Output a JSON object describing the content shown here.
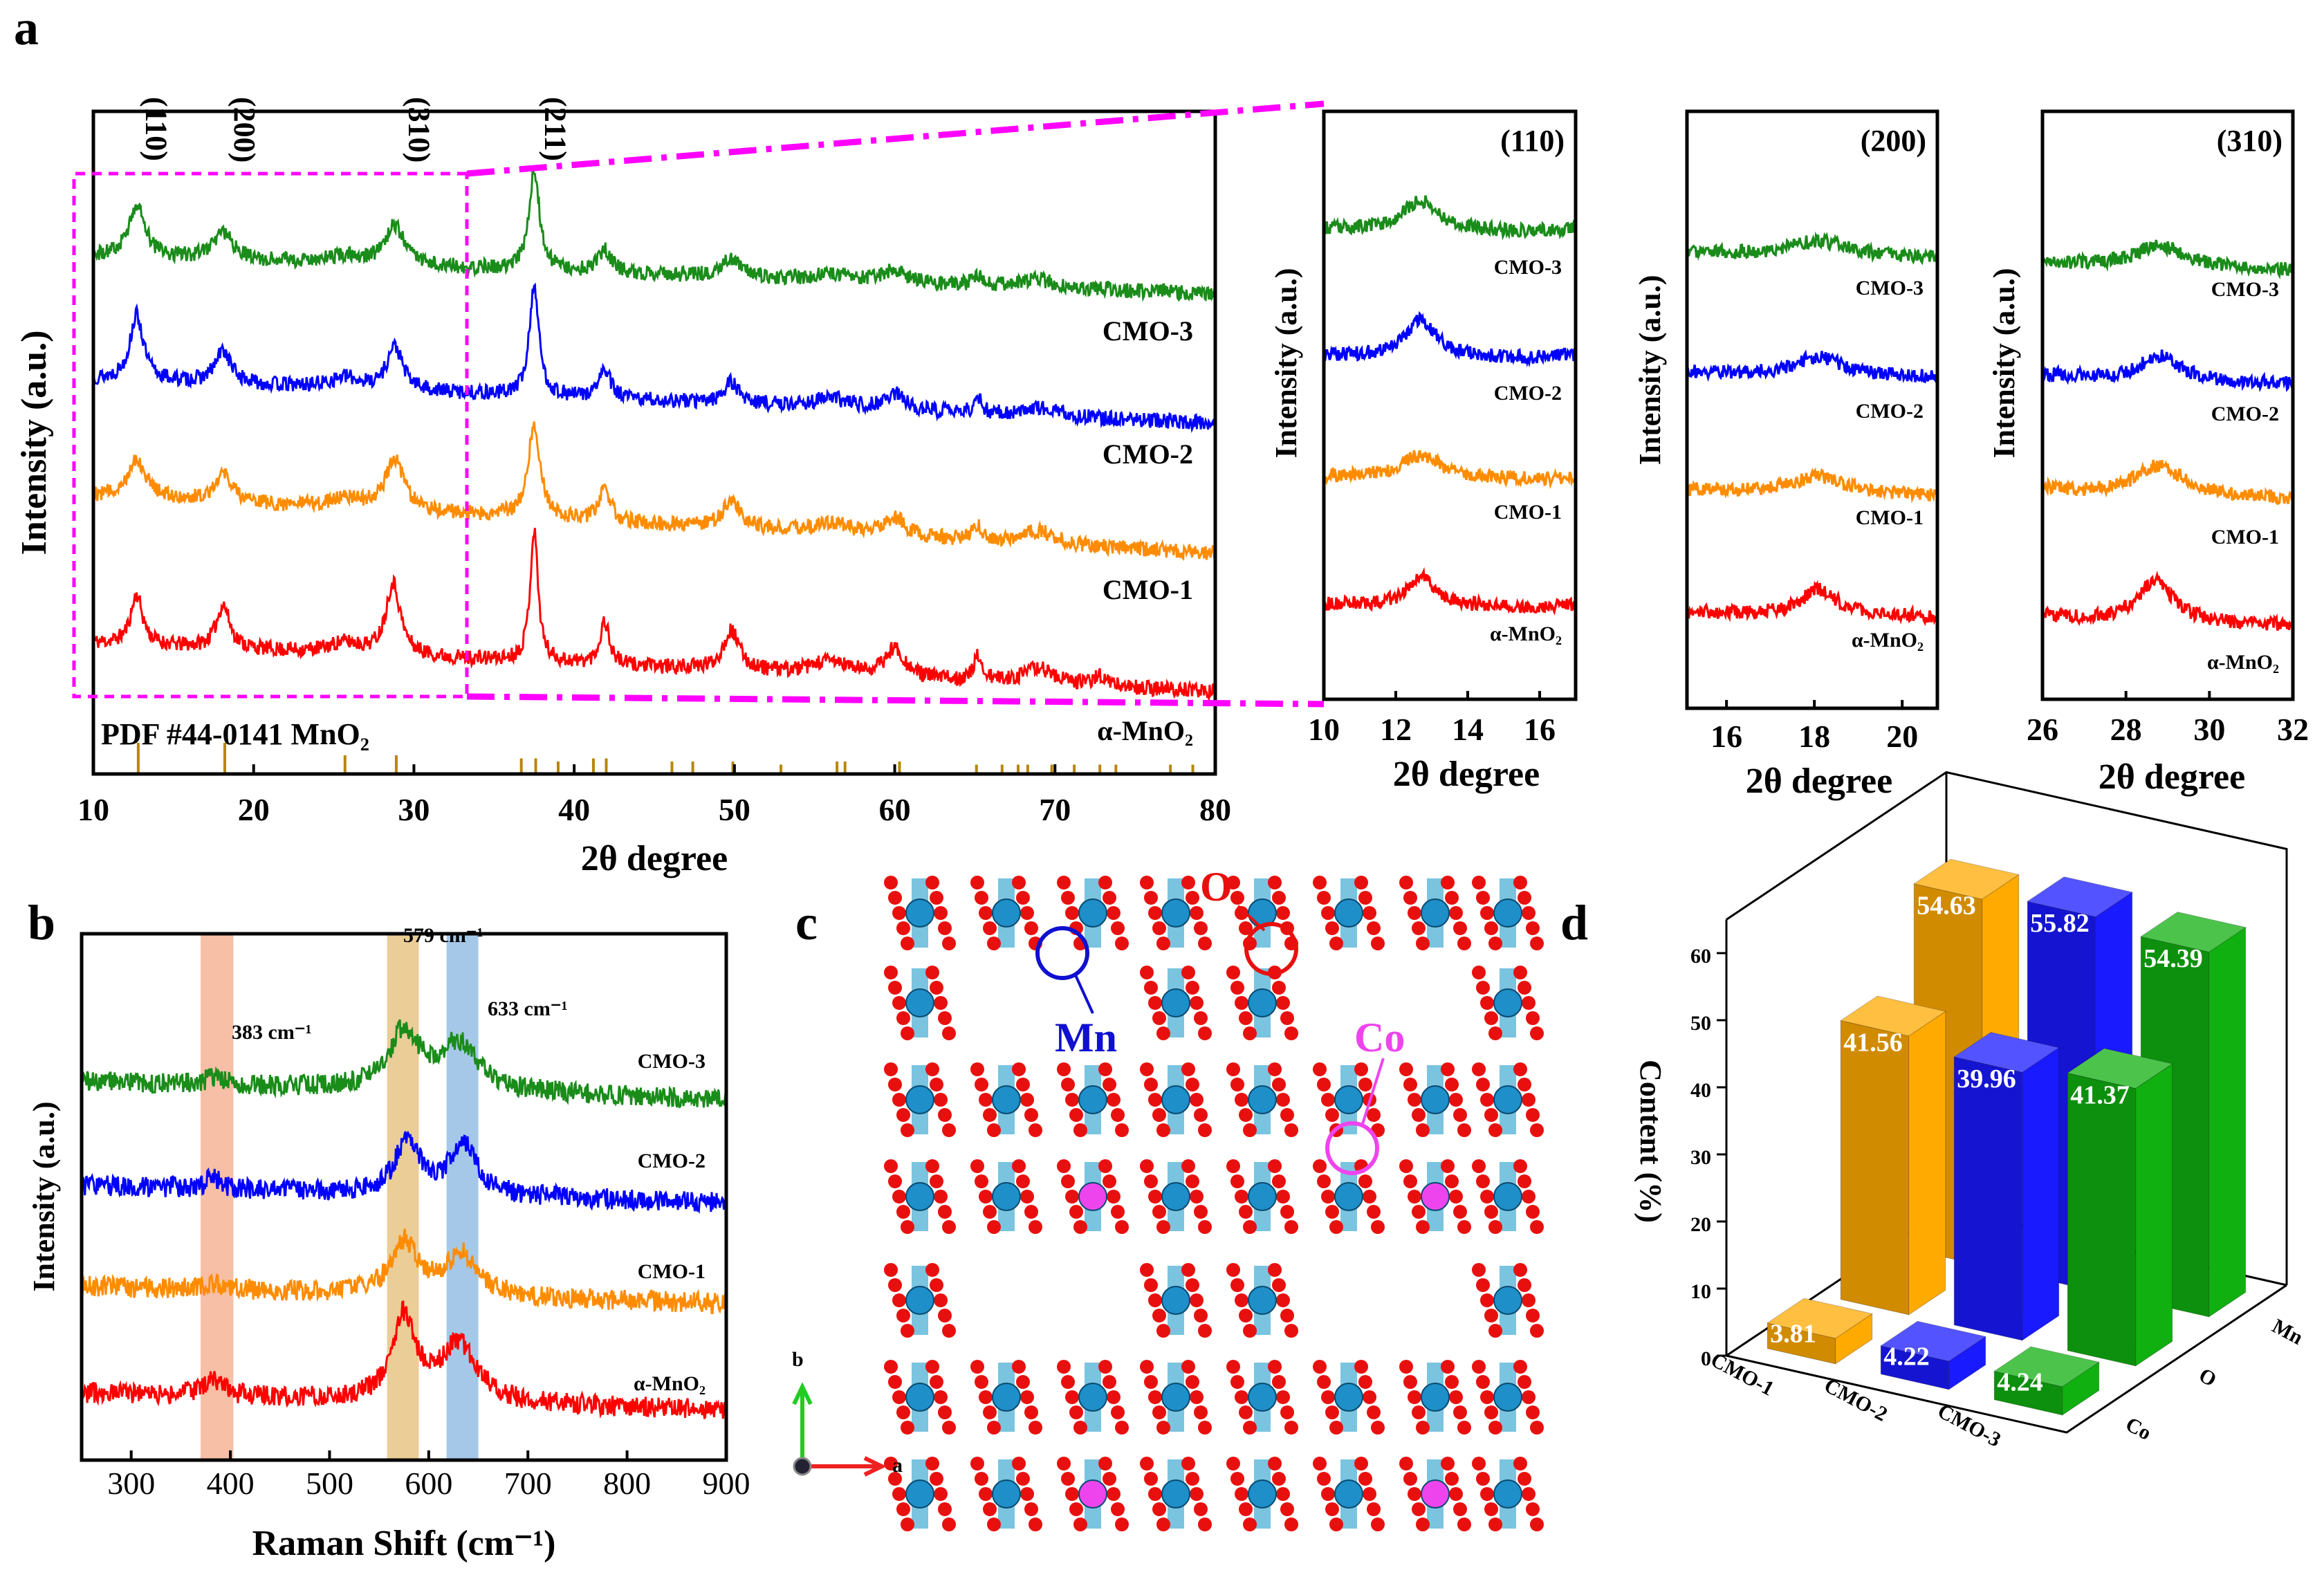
{
  "panel_labels": {
    "a": "a",
    "b": "b",
    "c": "c",
    "d": "d"
  },
  "chart_data": [
    {
      "id": "xrd",
      "type": "line",
      "title": "",
      "xlabel": "2θ degree",
      "ylabel": "Intensity (a.u.)",
      "xlim": [
        10,
        80
      ],
      "xticks": [
        10,
        20,
        30,
        40,
        50,
        60,
        70,
        80
      ],
      "hkl": [
        {
          "label": "(110)",
          "x": 12.7
        },
        {
          "label": "(200)",
          "x": 18.2
        },
        {
          "label": "(310)",
          "x": 29.1
        },
        {
          "label": "(211)",
          "x": 37.6
        }
      ],
      "reference": {
        "label": "PDF #44-0141 MnO₂",
        "color": "#b8860b",
        "positions": [
          12.8,
          18.2,
          25.7,
          28.9,
          36.7,
          37.6,
          39.0,
          41.2,
          42.0,
          46.1,
          47.4,
          49.9,
          52.9,
          56.4,
          56.9,
          60.3,
          65.1,
          66.7,
          67.7,
          68.3,
          69.8,
          71.2,
          72.8,
          73.8,
          77.2,
          78.6
        ],
        "intensities": [
          1,
          1,
          0.6,
          0.6,
          0.5,
          0.5,
          0.4,
          0.5,
          0.5,
          0.4,
          0.4,
          0.4,
          0.3,
          0.4,
          0.4,
          0.4,
          0.3,
          0.3,
          0.3,
          0.3,
          0.3,
          0.3,
          0.3,
          0.3,
          0.3,
          0.3
        ]
      },
      "series": [
        {
          "name": "α-MnO₂",
          "color": "#ff0000",
          "peaks": [
            [
              12.7,
              0.38,
              0.45
            ],
            [
              18.1,
              0.33,
              0.5
            ],
            [
              25.7,
              0.08,
              1.2
            ],
            [
              28.7,
              0.55,
              0.55
            ],
            [
              37.5,
              1.0,
              0.3
            ],
            [
              41.9,
              0.33,
              0.35
            ],
            [
              49.8,
              0.3,
              0.6
            ],
            [
              56,
              0.1,
              1.4
            ],
            [
              60,
              0.22,
              0.7
            ],
            [
              65.2,
              0.18,
              0.3
            ],
            [
              69,
              0.12,
              1.1
            ],
            [
              72.8,
              0.08,
              0.5
            ]
          ]
        },
        {
          "name": "CMO-1",
          "color": "#ff8c00",
          "peaks": [
            [
              12.7,
              0.3,
              0.7
            ],
            [
              18.1,
              0.22,
              0.7
            ],
            [
              25.7,
              0.08,
              1.2
            ],
            [
              28.8,
              0.4,
              0.7
            ],
            [
              37.5,
              0.72,
              0.45
            ],
            [
              41.9,
              0.25,
              0.45
            ],
            [
              49.8,
              0.2,
              0.7
            ],
            [
              56,
              0.08,
              1.4
            ],
            [
              60,
              0.14,
              0.8
            ],
            [
              65.2,
              0.1,
              0.4
            ],
            [
              69,
              0.1,
              1.2
            ]
          ]
        },
        {
          "name": "CMO-2",
          "color": "#0000ff",
          "peaks": [
            [
              12.7,
              0.5,
              0.5
            ],
            [
              18.1,
              0.25,
              0.6
            ],
            [
              25.7,
              0.08,
              1.2
            ],
            [
              28.8,
              0.33,
              0.6
            ],
            [
              37.5,
              0.85,
              0.35
            ],
            [
              41.9,
              0.22,
              0.45
            ],
            [
              49.8,
              0.16,
              0.6
            ],
            [
              56,
              0.07,
              1.4
            ],
            [
              60,
              0.12,
              0.8
            ],
            [
              65.2,
              0.1,
              0.3
            ],
            [
              69,
              0.07,
              1.2
            ]
          ]
        },
        {
          "name": "CMO-3",
          "color": "#1a8c1a",
          "peaks": [
            [
              12.7,
              0.4,
              0.6
            ],
            [
              18.1,
              0.2,
              0.8
            ],
            [
              25.7,
              0.06,
              1.2
            ],
            [
              28.8,
              0.3,
              0.75
            ],
            [
              37.5,
              0.75,
              0.4
            ],
            [
              41.9,
              0.17,
              0.5
            ],
            [
              49.8,
              0.14,
              0.7
            ],
            [
              56,
              0.05,
              1.4
            ],
            [
              60,
              0.1,
              0.8
            ],
            [
              65.2,
              0.06,
              0.4
            ],
            [
              69,
              0.06,
              1.2
            ]
          ]
        }
      ]
    },
    {
      "id": "inset-110",
      "type": "line",
      "title": "(110)",
      "xlabel": "2θ degree",
      "ylabel": "Intensity (a.u.)",
      "xlim": [
        10,
        17
      ],
      "xticks": [
        10,
        12,
        14,
        16
      ],
      "series_ref": "xrd"
    },
    {
      "id": "inset-200",
      "type": "line",
      "title": "(200)",
      "xlabel": "2θ degree",
      "ylabel": "Intensity (a.u.)",
      "xlim": [
        15.1,
        20.8
      ],
      "xticks": [
        16,
        18,
        20
      ],
      "series_ref": "xrd"
    },
    {
      "id": "inset-310",
      "type": "line",
      "title": "(310)",
      "xlabel": "2θ degree",
      "ylabel": "Intensity (a.u.)",
      "xlim": [
        26,
        32
      ],
      "xticks": [
        26,
        28,
        30,
        32
      ],
      "series_ref": "xrd"
    },
    {
      "id": "raman",
      "type": "line",
      "xlabel": "Raman Shift (cm⁻¹)",
      "ylabel": "Intensity (a.u.)",
      "xlim": [
        250,
        900
      ],
      "xticks": [
        300,
        400,
        500,
        600,
        700,
        800,
        900
      ],
      "bands": [
        {
          "label": "383 cm⁻¹",
          "center": 383,
          "range": [
            370,
            403
          ],
          "color": "#f08a5d"
        },
        {
          "label": "579 cm⁻¹",
          "center": 579,
          "range": [
            558,
            590
          ],
          "color": "#d9a441"
        },
        {
          "label": "633 cm⁻¹",
          "center": 633,
          "range": [
            618,
            650
          ],
          "color": "#5b9bd5"
        }
      ],
      "series": [
        {
          "name": "α-MnO₂",
          "color": "#ff0000",
          "peaks": [
            [
              383,
              0.15,
              12
            ],
            [
              575,
              0.8,
              14
            ],
            [
              630,
              0.55,
              22
            ]
          ]
        },
        {
          "name": "CMO-1",
          "color": "#ff8c00",
          "peaks": [
            [
              383,
              0.06,
              12
            ],
            [
              575,
              0.5,
              16
            ],
            [
              633,
              0.4,
              20
            ]
          ]
        },
        {
          "name": "CMO-2",
          "color": "#0000ff",
          "peaks": [
            [
              383,
              0.12,
              8
            ],
            [
              579,
              0.55,
              14
            ],
            [
              635,
              0.5,
              16
            ]
          ]
        },
        {
          "name": "CMO-3",
          "color": "#1a8c1a",
          "peaks": [
            [
              383,
              0.06,
              12
            ],
            [
              575,
              0.55,
              18
            ],
            [
              630,
              0.45,
              24
            ]
          ]
        }
      ]
    },
    {
      "id": "composition",
      "type": "bar",
      "subtype": "3d",
      "ylabel": "Content (%)",
      "ylim": [
        0,
        65
      ],
      "yticks": [
        0,
        10,
        20,
        30,
        40,
        50,
        60
      ],
      "categories": [
        "CMO-1",
        "CMO-2",
        "CMO-3"
      ],
      "series": [
        {
          "name": "Co",
          "values": [
            3.81,
            4.22,
            4.24
          ]
        },
        {
          "name": "O",
          "values": [
            41.56,
            39.96,
            41.37
          ]
        },
        {
          "name": "Mn",
          "values": [
            54.63,
            55.82,
            54.39
          ]
        }
      ],
      "category_colors": [
        "#ffaa00",
        "#1a1aff",
        "#10b010"
      ]
    }
  ],
  "structure": {
    "atoms": [
      {
        "label": "O",
        "color": "#e8100e"
      },
      {
        "label": "Mn",
        "color": "#1010d0"
      },
      {
        "label": "Co",
        "color": "#ee44ee"
      }
    ],
    "axes": {
      "a": "a",
      "b": "b"
    }
  }
}
